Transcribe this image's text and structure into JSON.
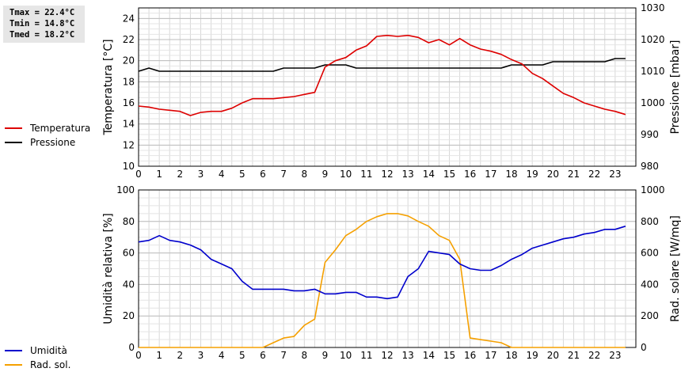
{
  "stats": {
    "tmax": "Tmax = 22.4°C",
    "tmin": "Tmin = 14.8°C",
    "tmed": "Tmed = 18.2°C"
  },
  "colors": {
    "temperatura": "#dd0000",
    "pressione": "#000000",
    "umidita": "#0000cc",
    "radsol": "#f5a000"
  },
  "chart_data": [
    {
      "type": "line",
      "title": "",
      "xlabel": "",
      "xlim": [
        0,
        24
      ],
      "xticks": [
        0,
        1,
        2,
        3,
        4,
        5,
        6,
        7,
        8,
        9,
        10,
        11,
        12,
        13,
        14,
        15,
        16,
        17,
        18,
        19,
        20,
        21,
        22,
        23
      ],
      "ylabel": "Temperatura [°C]",
      "ylim": [
        10,
        25
      ],
      "yticks": [
        10,
        12,
        14,
        16,
        18,
        20,
        22,
        24
      ],
      "y2label": "Pressione [mbar]",
      "y2lim": [
        980,
        1030
      ],
      "y2ticks": [
        980,
        990,
        1000,
        1010,
        1020,
        1030
      ],
      "grid": true,
      "legend_placement": "left",
      "series": [
        {
          "name": "Temperatura",
          "axis": "left",
          "x": [
            0,
            0.5,
            1,
            1.5,
            2,
            2.5,
            3,
            3.5,
            4,
            4.5,
            5,
            5.5,
            6,
            6.5,
            7,
            7.5,
            8,
            8.5,
            9,
            9.5,
            10,
            10.5,
            11,
            11.5,
            12,
            12.5,
            13,
            13.5,
            14,
            14.5,
            15,
            15.5,
            16,
            16.5,
            17,
            17.5,
            18,
            18.5,
            19,
            19.5,
            20,
            20.5,
            21,
            21.5,
            22,
            22.5,
            23,
            23.5
          ],
          "values": [
            15.7,
            15.6,
            15.4,
            15.3,
            15.2,
            14.8,
            15.1,
            15.2,
            15.2,
            15.5,
            16.0,
            16.4,
            16.4,
            16.4,
            16.5,
            16.6,
            16.8,
            17.0,
            19.4,
            20.0,
            20.3,
            21.0,
            21.4,
            22.3,
            22.4,
            22.3,
            22.4,
            22.2,
            21.7,
            22.0,
            21.5,
            22.1,
            21.5,
            21.1,
            20.9,
            20.6,
            20.1,
            19.7,
            18.8,
            18.3,
            17.6,
            16.9,
            16.5,
            16.0,
            15.7,
            15.4,
            15.2,
            14.9
          ]
        },
        {
          "name": "Pressione",
          "axis": "right",
          "x": [
            0,
            0.5,
            1,
            1.5,
            2,
            2.5,
            3,
            3.5,
            4,
            4.5,
            5,
            5.5,
            6,
            6.5,
            7,
            7.5,
            8,
            8.5,
            9,
            9.5,
            10,
            10.5,
            11,
            11.5,
            12,
            12.5,
            13,
            13.5,
            14,
            14.5,
            15,
            15.5,
            16,
            16.5,
            17,
            17.5,
            18,
            18.5,
            19,
            19.5,
            20,
            20.5,
            21,
            21.5,
            22,
            22.5,
            23,
            23.5
          ],
          "values": [
            1010,
            1011,
            1010,
            1010,
            1010,
            1010,
            1010,
            1010,
            1010,
            1010,
            1010,
            1010,
            1010,
            1010,
            1011,
            1011,
            1011,
            1011,
            1012,
            1012,
            1012,
            1011,
            1011,
            1011,
            1011,
            1011,
            1011,
            1011,
            1011,
            1011,
            1011,
            1011,
            1011,
            1011,
            1011,
            1011,
            1012,
            1012,
            1012,
            1012,
            1013,
            1013,
            1013,
            1013,
            1013,
            1013,
            1014,
            1014
          ]
        }
      ]
    },
    {
      "type": "line",
      "title": "",
      "xlabel": "",
      "xlim": [
        0,
        24
      ],
      "xticks": [
        0,
        1,
        2,
        3,
        4,
        5,
        6,
        7,
        8,
        9,
        10,
        11,
        12,
        13,
        14,
        15,
        16,
        17,
        18,
        19,
        20,
        21,
        22,
        23
      ],
      "ylabel": "Umidità relativa [%]",
      "ylim": [
        0,
        100
      ],
      "yticks": [
        0,
        20,
        40,
        60,
        80,
        100
      ],
      "y2label": "Rad. solare [W/mq]",
      "y2lim": [
        0,
        1000
      ],
      "y2ticks": [
        0,
        200,
        400,
        600,
        800,
        1000
      ],
      "grid": true,
      "legend_placement": "left",
      "series": [
        {
          "name": "Umidità",
          "axis": "left",
          "x": [
            0,
            0.5,
            1,
            1.5,
            2,
            2.5,
            3,
            3.5,
            4,
            4.5,
            5,
            5.5,
            6,
            6.5,
            7,
            7.5,
            8,
            8.5,
            9,
            9.5,
            10,
            10.5,
            11,
            11.5,
            12,
            12.5,
            13,
            13.5,
            14,
            14.5,
            15,
            15.5,
            16,
            16.5,
            17,
            17.5,
            18,
            18.5,
            19,
            19.5,
            20,
            20.5,
            21,
            21.5,
            22,
            22.5,
            23,
            23.5
          ],
          "values": [
            67,
            68,
            71,
            68,
            67,
            65,
            62,
            56,
            53,
            50,
            42,
            37,
            37,
            37,
            37,
            36,
            36,
            37,
            34,
            34,
            35,
            35,
            32,
            32,
            31,
            32,
            45,
            50,
            61,
            60,
            59,
            53,
            50,
            49,
            49,
            52,
            56,
            59,
            63,
            65,
            67,
            69,
            70,
            72,
            73,
            75,
            75,
            77
          ]
        },
        {
          "name": "Rad. sol.",
          "axis": "right",
          "x": [
            0,
            0.5,
            1,
            1.5,
            2,
            2.5,
            3,
            3.5,
            4,
            4.5,
            5,
            5.5,
            6,
            6.5,
            7,
            7.5,
            8,
            8.5,
            9,
            9.5,
            10,
            10.5,
            11,
            11.5,
            12,
            12.5,
            13,
            13.5,
            14,
            14.5,
            15,
            15.5,
            16,
            16.5,
            17,
            17.5,
            18,
            18.5,
            19,
            19.5,
            20,
            20.5,
            21,
            21.5,
            22,
            22.5,
            23,
            23.5
          ],
          "values": [
            0,
            0,
            0,
            0,
            0,
            0,
            0,
            0,
            0,
            0,
            0,
            0,
            0,
            30,
            60,
            70,
            140,
            180,
            540,
            620,
            710,
            750,
            800,
            830,
            850,
            850,
            835,
            800,
            770,
            710,
            680,
            560,
            60,
            50,
            40,
            30,
            0,
            0,
            0,
            0,
            0,
            0,
            0,
            0,
            0,
            0,
            0,
            0
          ]
        }
      ]
    }
  ]
}
